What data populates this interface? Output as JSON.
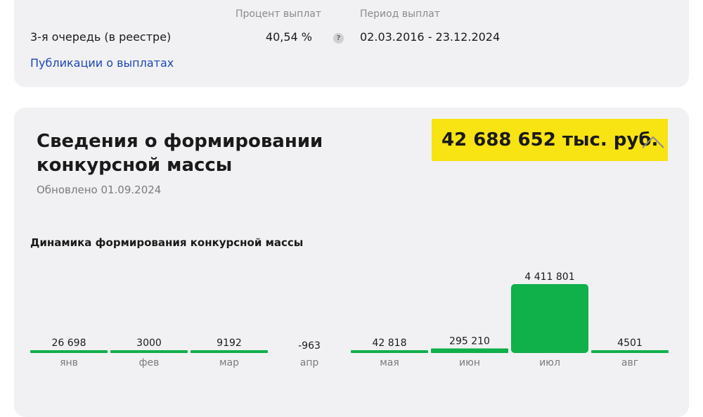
{
  "payouts": {
    "header_percent": "Процент выплат",
    "header_period": "Период выплат",
    "row_label": "3-я очередь (в реестре)",
    "row_percent": "40,54 %",
    "help_glyph": "?",
    "row_period": "02.03.2016 - 23.12.2024",
    "link": "Публикации о выплатах"
  },
  "mass": {
    "title": "Сведения о формировании конкурсной массы",
    "total": "42 688 652 тыс. руб.",
    "updated": "Обновлено 01.09.2024",
    "chart_title": "Динамика формирования конкурсной массы",
    "highlight_color": "#f8e313"
  },
  "colors": {
    "bar": "#10b04a",
    "card_bg": "#f1f1f3",
    "link": "#1d47b8"
  },
  "chart_data": {
    "type": "bar",
    "title": "Динамика формирования конкурсной массы",
    "categories": [
      "янв",
      "фев",
      "мар",
      "апр",
      "мая",
      "июн",
      "июл",
      "авг"
    ],
    "values": [
      26698,
      3000,
      9192,
      -963,
      42818,
      295210,
      4411801,
      4501
    ],
    "value_labels": [
      "26 698",
      "3000",
      "9192",
      "-963",
      "42 818",
      "295 210",
      "4 411 801",
      "4501"
    ],
    "ylim": [
      0,
      4411801
    ],
    "grid": false,
    "legend": "none"
  }
}
